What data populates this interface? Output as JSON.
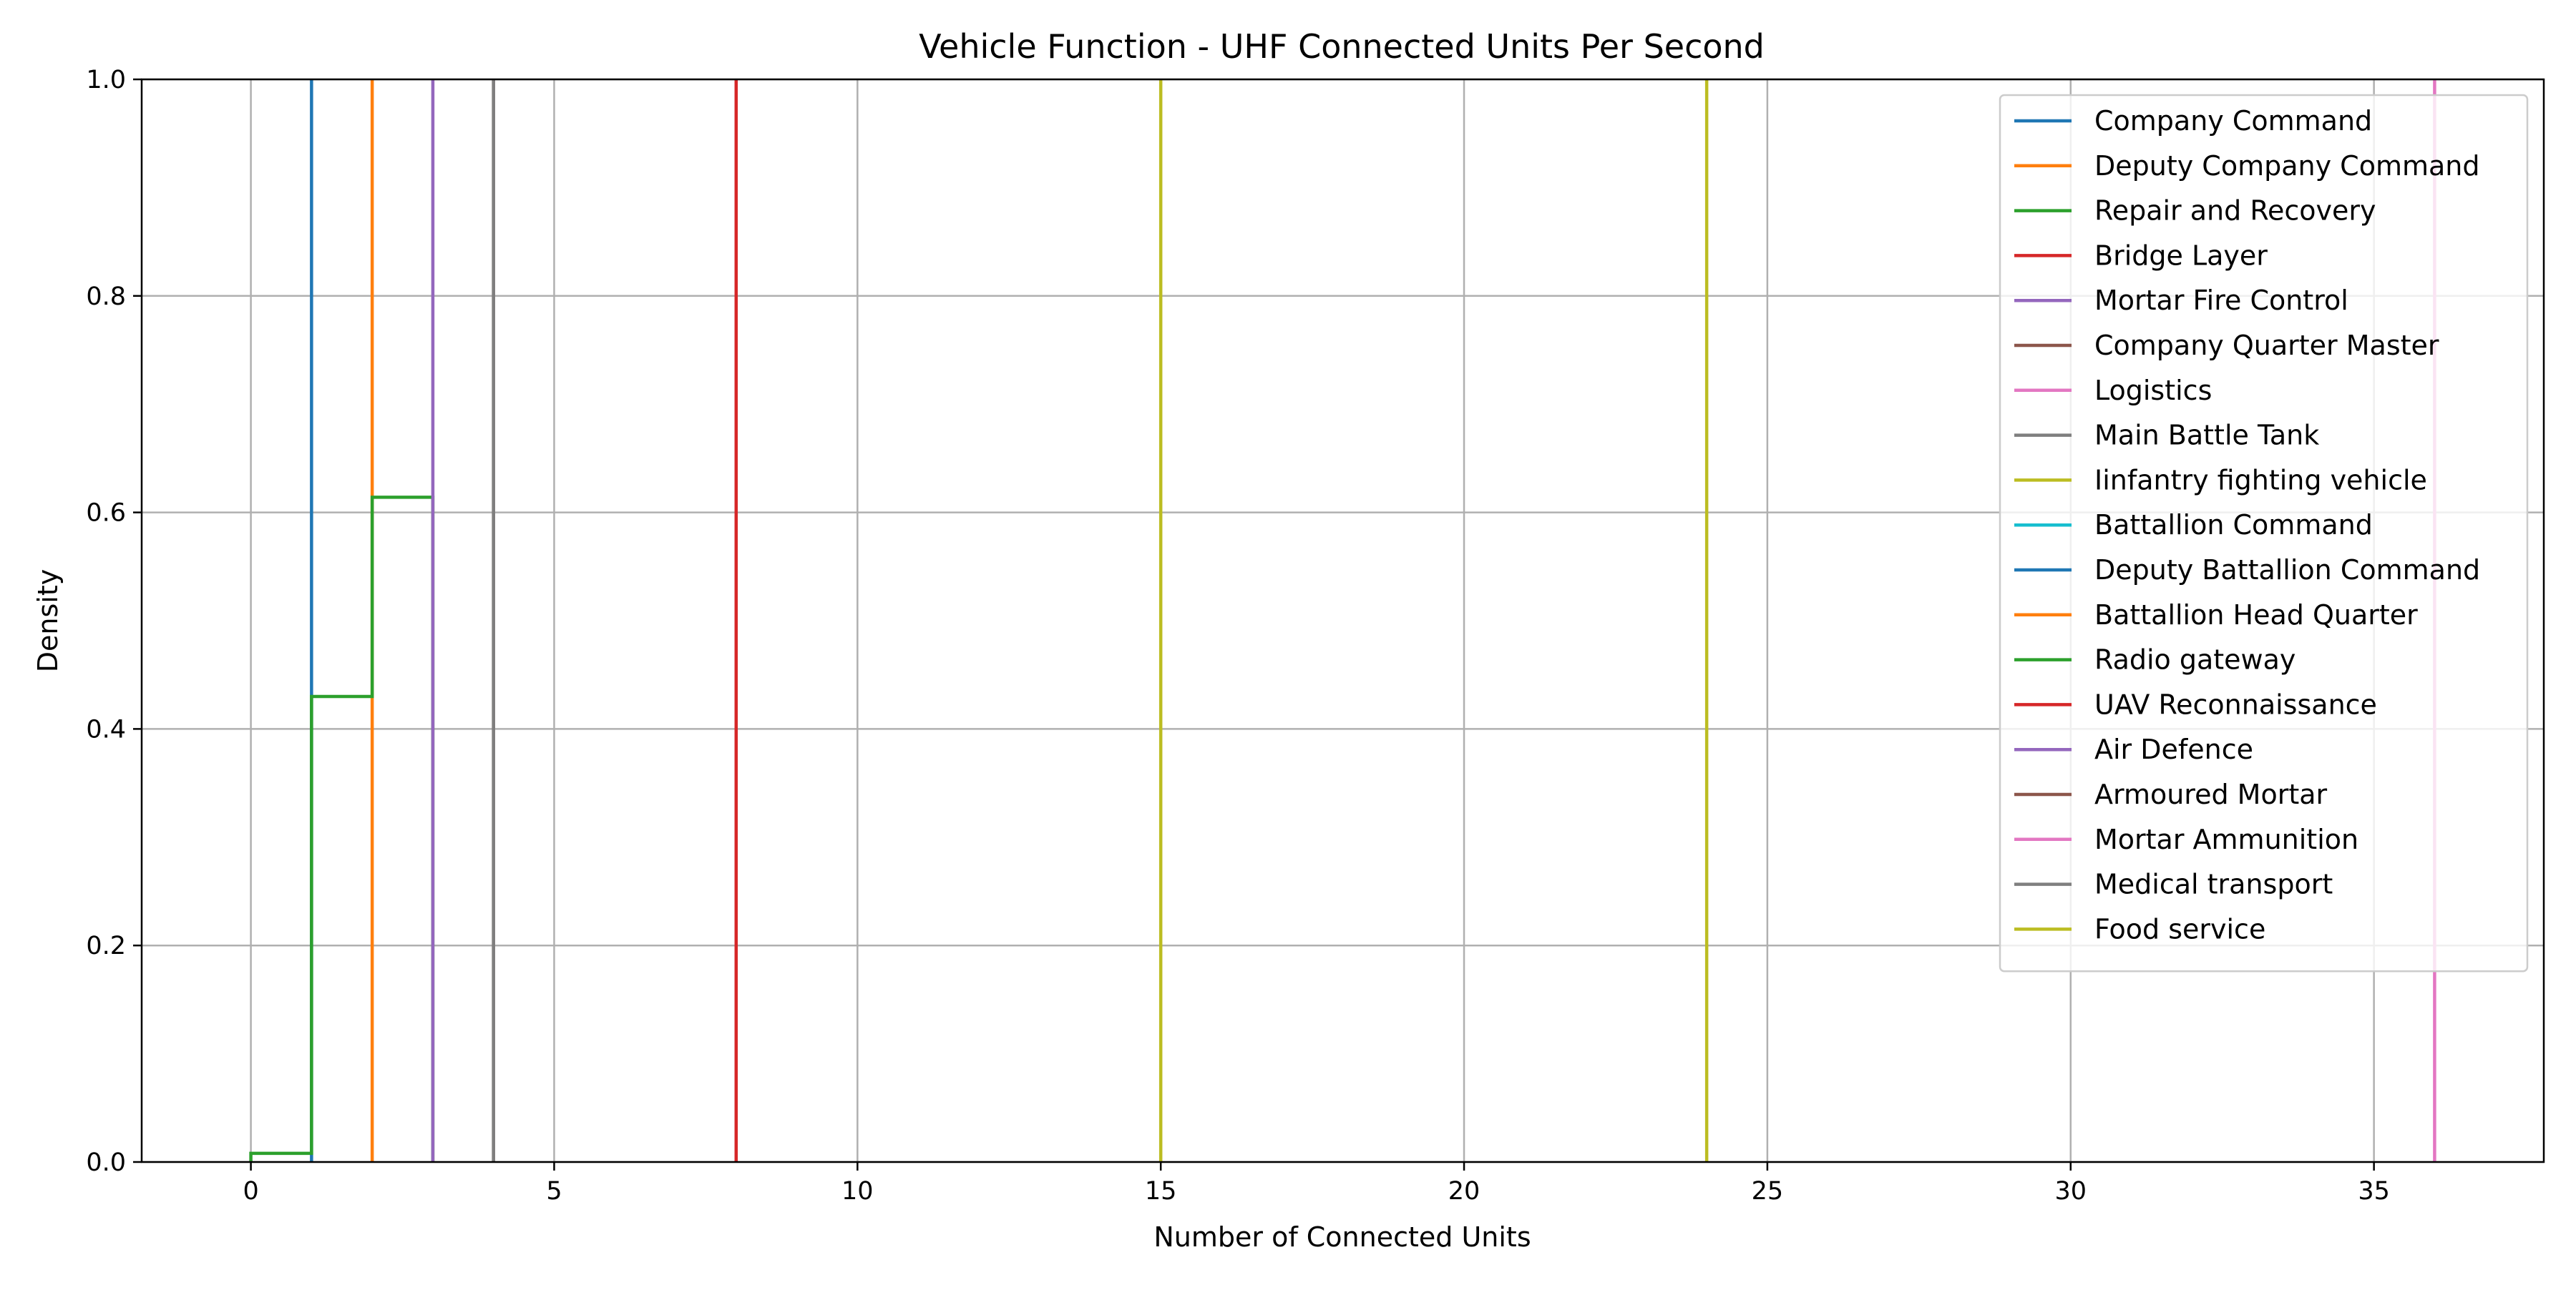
{
  "chart_data": {
    "type": "line",
    "title": "Vehicle Function - UHF Connected Units Per Second",
    "xlabel": "Number of Connected Units",
    "ylabel": "Density",
    "xlim": [
      -1.8,
      37.8
    ],
    "ylim": [
      0,
      1.0
    ],
    "xticks": [
      0,
      5,
      10,
      15,
      20,
      25,
      30,
      35
    ],
    "yticks": [
      0.0,
      0.2,
      0.4,
      0.6,
      0.8,
      1.0
    ],
    "xtick_labels": [
      "0",
      "5",
      "10",
      "15",
      "20",
      "25",
      "30",
      "35"
    ],
    "ytick_labels": [
      "0.0",
      "0.2",
      "0.4",
      "0.6",
      "0.8",
      "1.0"
    ],
    "grid": true,
    "legend_position": "top-right",
    "series": [
      {
        "name": "Company Command",
        "color": "#1f77b4",
        "points": [
          [
            1,
            0
          ],
          [
            1,
            1.0
          ]
        ]
      },
      {
        "name": "Deputy Company Command",
        "color": "#ff7f0e",
        "points": [
          [
            2,
            0
          ],
          [
            2,
            1.0
          ]
        ]
      },
      {
        "name": "Repair and Recovery",
        "color": "#2ca02c",
        "points": [
          [
            0,
            0
          ],
          [
            0,
            0.008
          ],
          [
            1,
            0.008
          ],
          [
            1,
            0.43
          ],
          [
            2,
            0.43
          ],
          [
            2,
            0.614
          ],
          [
            3,
            0.614
          ],
          [
            3,
            0
          ]
        ]
      },
      {
        "name": "Bridge Layer",
        "color": "#d62728",
        "points": [
          [
            8,
            0
          ],
          [
            8,
            1.0
          ]
        ]
      },
      {
        "name": "Mortar Fire Control",
        "color": "#9467bd",
        "points": [
          [
            3,
            0
          ],
          [
            3,
            1.0
          ]
        ]
      },
      {
        "name": "Company Quarter Master",
        "color": "#8c564b",
        "points": [
          [
            4,
            0
          ],
          [
            4,
            1.0
          ]
        ]
      },
      {
        "name": "Logistics",
        "color": "#e377c2",
        "points": [
          [
            36,
            0
          ],
          [
            36,
            1.0
          ]
        ]
      },
      {
        "name": "Main Battle Tank",
        "color": "#7f7f7f",
        "points": [
          [
            4,
            0
          ],
          [
            4,
            1.0
          ]
        ]
      },
      {
        "name": "Iinfantry fighting vehicle",
        "color": "#bcbd22",
        "points": [
          [
            24,
            0
          ],
          [
            24,
            1.0
          ]
        ]
      },
      {
        "name": "Battallion Command",
        "color": "#17becf",
        "points": []
      },
      {
        "name": "Deputy Battallion Command",
        "color": "#1f77b4",
        "points": []
      },
      {
        "name": "Battallion Head Quarter",
        "color": "#ff7f0e",
        "points": []
      },
      {
        "name": "Radio gateway",
        "color": "#2ca02c",
        "points": []
      },
      {
        "name": "UAV Reconnaissance",
        "color": "#d62728",
        "points": []
      },
      {
        "name": "Air Defence",
        "color": "#9467bd",
        "points": []
      },
      {
        "name": "Armoured Mortar",
        "color": "#8c564b",
        "points": []
      },
      {
        "name": "Mortar Ammunition",
        "color": "#e377c2",
        "points": []
      },
      {
        "name": "Medical transport",
        "color": "#7f7f7f",
        "points": []
      },
      {
        "name": "Food service",
        "color": "#bcbd22",
        "points": [
          [
            15,
            0
          ],
          [
            15,
            1.0
          ]
        ]
      }
    ]
  }
}
